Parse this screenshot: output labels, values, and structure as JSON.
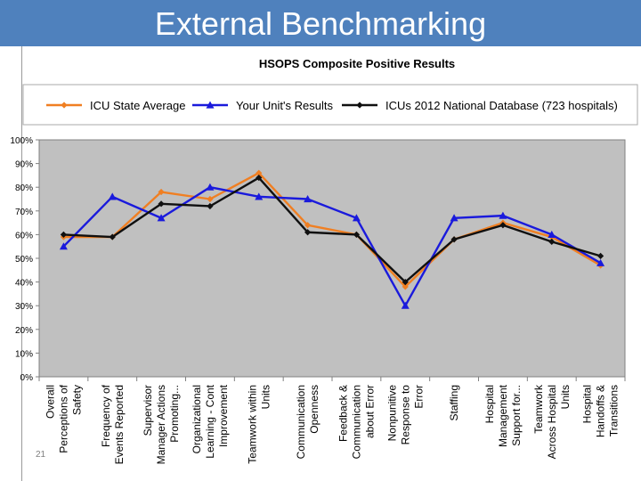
{
  "slide": {
    "title": "External Benchmarking",
    "slide_number": "21",
    "header_color": "#4f81bd"
  },
  "chart_data": {
    "type": "line",
    "title": "HSOPS Composite Positive Results",
    "xlabel": "",
    "ylabel": "",
    "ylim": [
      0,
      100
    ],
    "y_ticks": [
      "0%",
      "10%",
      "20%",
      "30%",
      "40%",
      "50%",
      "60%",
      "70%",
      "80%",
      "90%",
      "100%"
    ],
    "grid": false,
    "legend_position": "top",
    "plot_background": "#c0c0c0",
    "categories": [
      [
        "Overall",
        "Perceptions of",
        "Safety"
      ],
      [
        "Frequency of",
        "Events Reported"
      ],
      [
        "Supervisor",
        "Manager Actions",
        "Promoting..."
      ],
      [
        "Organizational",
        "Learning - Cont",
        "Improvement"
      ],
      [
        "Teamwork within",
        "Units"
      ],
      [
        "Communication",
        "Openness"
      ],
      [
        "Feedback &",
        "Communication",
        "about Error"
      ],
      [
        "Nonpunitive",
        "Response to",
        "Error"
      ],
      [
        "Staffing"
      ],
      [
        "Hospital",
        "Management",
        "Support for..."
      ],
      [
        "Teamwork",
        "Across Hospital",
        "Units"
      ],
      [
        "Hospital",
        "Handoffs &",
        "Transitions"
      ]
    ],
    "series": [
      {
        "name": "ICU State Average",
        "color": "#f07f22",
        "marker": "diamond",
        "values": [
          59,
          59,
          78,
          75,
          86,
          64,
          60,
          38,
          58,
          65,
          59,
          47
        ]
      },
      {
        "name": "Your Unit's Results",
        "color": "#1a1adc",
        "marker": "triangle",
        "values": [
          55,
          76,
          67,
          80,
          76,
          75,
          67,
          30,
          67,
          68,
          60,
          48
        ]
      },
      {
        "name": "ICUs 2012 National Database (723 hospitals)",
        "color": "#101010",
        "marker": "diamond",
        "values": [
          60,
          59,
          73,
          72,
          84,
          61,
          60,
          40,
          58,
          64,
          57,
          51
        ]
      }
    ]
  }
}
